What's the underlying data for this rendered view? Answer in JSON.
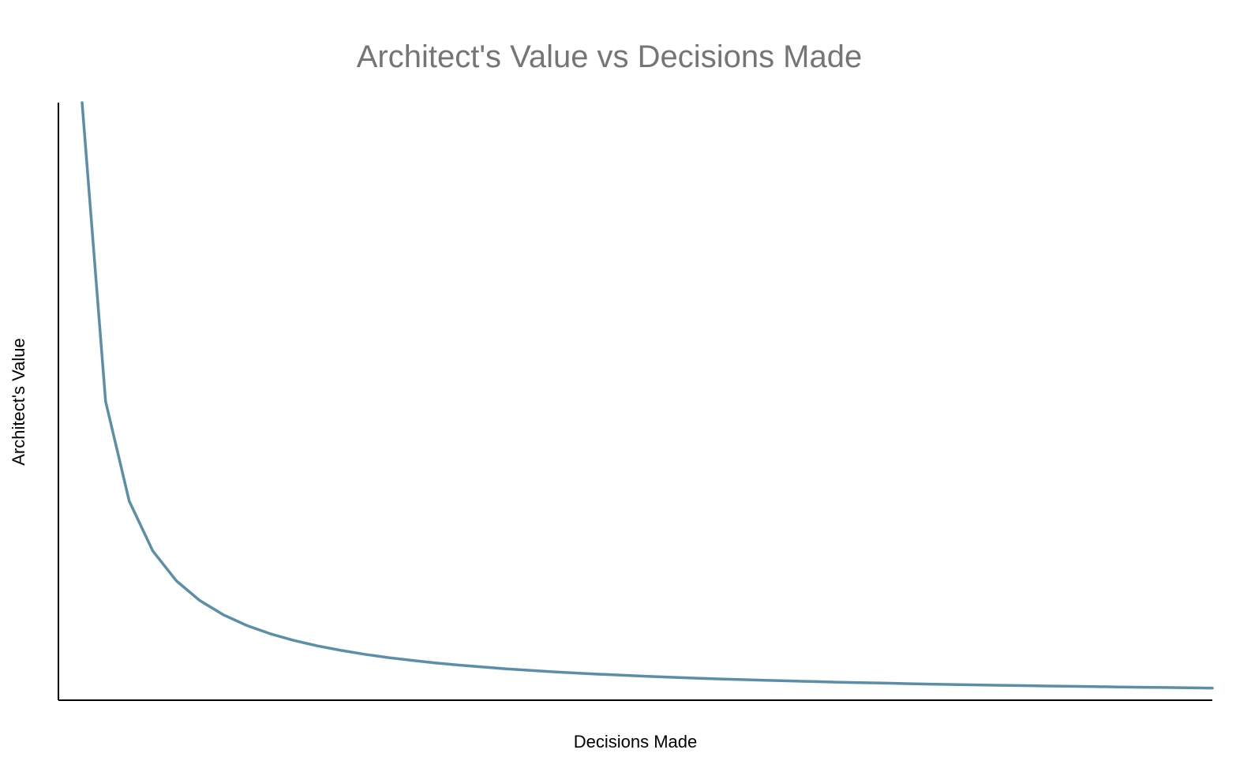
{
  "chart_data": {
    "type": "line",
    "title": "Architect's Value vs Decisions Made",
    "xlabel": "Decisions Made",
    "ylabel": "Architect's Value",
    "x_ticks_shown": false,
    "y_ticks_shown": false,
    "grid": false,
    "legend": "none",
    "x": [
      1,
      2,
      3,
      4,
      5,
      6,
      7,
      8,
      9,
      10,
      11,
      12,
      13,
      14,
      15,
      16,
      17,
      18,
      19,
      20,
      21,
      22,
      23,
      24,
      25,
      26,
      27,
      28,
      29,
      30,
      31,
      32,
      33,
      34,
      35,
      36,
      37,
      38,
      39,
      40,
      41,
      42,
      43,
      44,
      45,
      46,
      47,
      48,
      49
    ],
    "series": [
      {
        "values": [
          1.0,
          0.5,
          0.3333,
          0.25,
          0.2,
          0.1667,
          0.1429,
          0.125,
          0.1111,
          0.1,
          0.0909,
          0.0833,
          0.0769,
          0.0714,
          0.0667,
          0.0625,
          0.0588,
          0.0556,
          0.0526,
          0.05,
          0.0476,
          0.0455,
          0.0435,
          0.0417,
          0.04,
          0.0385,
          0.037,
          0.0357,
          0.0345,
          0.0333,
          0.0323,
          0.0313,
          0.0303,
          0.0294,
          0.0286,
          0.0278,
          0.027,
          0.0263,
          0.0256,
          0.025,
          0.0244,
          0.0238,
          0.0233,
          0.0227,
          0.0222,
          0.0217,
          0.0213,
          0.0208,
          0.0204
        ]
      }
    ],
    "xlim": [
      0,
      49
    ],
    "ylim": [
      0,
      1
    ],
    "colors": {
      "line": "#5b8fa8",
      "axis": "#000000",
      "title": "#757575"
    }
  }
}
